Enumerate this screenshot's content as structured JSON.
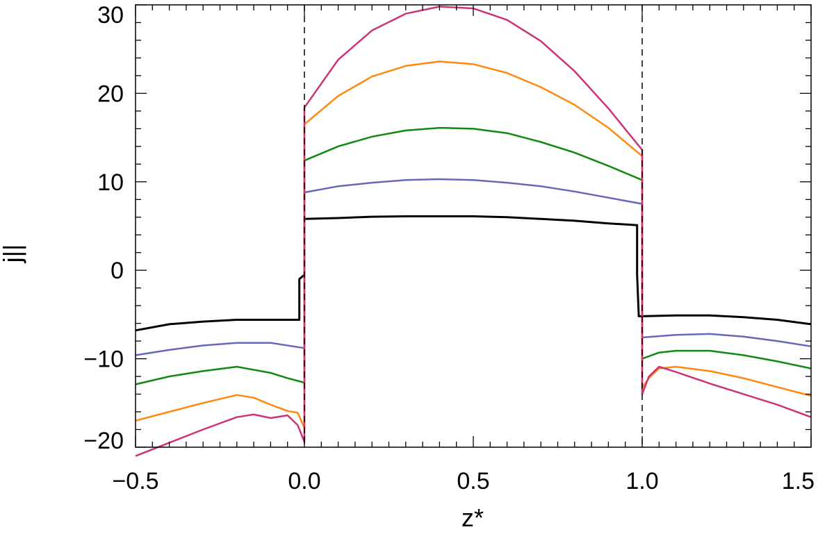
{
  "chart_data": {
    "type": "line",
    "title": "",
    "xlabel": "z*",
    "ylabel": "j||",
    "xlim": [
      -0.5,
      1.5
    ],
    "ylim": [
      -20,
      30
    ],
    "xticks": [
      {
        "value": -0.5,
        "label": "−0.5"
      },
      {
        "value": 0.0,
        "label": "0.0"
      },
      {
        "value": 0.5,
        "label": "0.5"
      },
      {
        "value": 1.0,
        "label": "1.0"
      },
      {
        "value": 1.5,
        "label": "1.5"
      }
    ],
    "yticks": [
      {
        "value": -20,
        "label": "−20"
      },
      {
        "value": -10,
        "label": "−10"
      },
      {
        "value": 0,
        "label": "0"
      },
      {
        "value": 10,
        "label": "10"
      },
      {
        "value": 20,
        "label": "20"
      },
      {
        "value": 30,
        "label": "30"
      }
    ],
    "x_minor_step": 0.05,
    "y_minor_step": 2,
    "grid": false,
    "legend": "none",
    "vlines": [
      0.0,
      1.0
    ],
    "series": [
      {
        "color": "#000000",
        "points": [
          [
            -0.5,
            -6.8
          ],
          [
            -0.4,
            -6.1
          ],
          [
            -0.3,
            -5.8
          ],
          [
            -0.2,
            -5.6
          ],
          [
            -0.1,
            -5.6
          ],
          [
            -0.015,
            -5.6
          ],
          [
            -0.015,
            -1.0
          ],
          [
            0.0,
            -0.5
          ],
          [
            0.0,
            5.8
          ],
          [
            0.1,
            5.9
          ],
          [
            0.2,
            6.05
          ],
          [
            0.3,
            6.1
          ],
          [
            0.4,
            6.1
          ],
          [
            0.5,
            6.1
          ],
          [
            0.6,
            6.0
          ],
          [
            0.7,
            5.8
          ],
          [
            0.8,
            5.6
          ],
          [
            0.9,
            5.3
          ],
          [
            0.985,
            5.1
          ],
          [
            0.985,
            -0.5
          ],
          [
            0.99,
            -5.2
          ],
          [
            1.0,
            -5.2
          ],
          [
            1.1,
            -5.1
          ],
          [
            1.2,
            -5.1
          ],
          [
            1.3,
            -5.3
          ],
          [
            1.4,
            -5.6
          ],
          [
            1.5,
            -6.1
          ]
        ]
      },
      {
        "color": "#6666bb",
        "points": [
          [
            -0.5,
            -9.6
          ],
          [
            -0.4,
            -9.0
          ],
          [
            -0.3,
            -8.5
          ],
          [
            -0.2,
            -8.2
          ],
          [
            -0.1,
            -8.2
          ],
          [
            0.0,
            -8.8
          ],
          [
            0.0,
            8.8
          ],
          [
            0.1,
            9.5
          ],
          [
            0.2,
            9.9
          ],
          [
            0.3,
            10.2
          ],
          [
            0.4,
            10.3
          ],
          [
            0.5,
            10.2
          ],
          [
            0.6,
            9.9
          ],
          [
            0.7,
            9.5
          ],
          [
            0.8,
            8.9
          ],
          [
            0.9,
            8.2
          ],
          [
            1.0,
            7.5
          ],
          [
            1.0,
            -7.6
          ],
          [
            1.1,
            -7.3
          ],
          [
            1.2,
            -7.2
          ],
          [
            1.3,
            -7.5
          ],
          [
            1.4,
            -8.0
          ],
          [
            1.5,
            -8.6
          ]
        ]
      },
      {
        "color": "#118811",
        "points": [
          [
            -0.5,
            -12.9
          ],
          [
            -0.4,
            -12.0
          ],
          [
            -0.3,
            -11.4
          ],
          [
            -0.2,
            -10.9
          ],
          [
            -0.1,
            -11.6
          ],
          [
            -0.05,
            -12.2
          ],
          [
            0.0,
            -12.7
          ],
          [
            0.0,
            12.4
          ],
          [
            0.1,
            14.0
          ],
          [
            0.2,
            15.1
          ],
          [
            0.3,
            15.8
          ],
          [
            0.4,
            16.1
          ],
          [
            0.5,
            16.0
          ],
          [
            0.6,
            15.5
          ],
          [
            0.7,
            14.5
          ],
          [
            0.8,
            13.3
          ],
          [
            0.9,
            11.8
          ],
          [
            1.0,
            10.2
          ],
          [
            1.0,
            -10.0
          ],
          [
            1.05,
            -9.3
          ],
          [
            1.1,
            -9.1
          ],
          [
            1.2,
            -9.1
          ],
          [
            1.3,
            -9.6
          ],
          [
            1.4,
            -10.3
          ],
          [
            1.5,
            -11.1
          ]
        ]
      },
      {
        "color": "#ff8811",
        "points": [
          [
            -0.5,
            -17.0
          ],
          [
            -0.4,
            -16.0
          ],
          [
            -0.3,
            -15.0
          ],
          [
            -0.2,
            -14.1
          ],
          [
            -0.15,
            -14.4
          ],
          [
            -0.1,
            -15.2
          ],
          [
            -0.05,
            -15.9
          ],
          [
            -0.02,
            -16.1
          ],
          [
            0.0,
            -17.8
          ],
          [
            0.0,
            16.5
          ],
          [
            0.1,
            19.7
          ],
          [
            0.2,
            21.9
          ],
          [
            0.3,
            23.1
          ],
          [
            0.4,
            23.6
          ],
          [
            0.5,
            23.3
          ],
          [
            0.6,
            22.3
          ],
          [
            0.7,
            20.7
          ],
          [
            0.8,
            18.7
          ],
          [
            0.9,
            16.1
          ],
          [
            1.0,
            12.9
          ],
          [
            1.0,
            -13.3
          ],
          [
            1.02,
            -12.2
          ],
          [
            1.05,
            -11.1
          ],
          [
            1.1,
            -10.9
          ],
          [
            1.2,
            -11.4
          ],
          [
            1.3,
            -12.2
          ],
          [
            1.4,
            -13.2
          ],
          [
            1.5,
            -14.2
          ]
        ]
      },
      {
        "color": "#cc3377",
        "points": [
          [
            -0.5,
            -21.0
          ],
          [
            -0.4,
            -19.5
          ],
          [
            -0.3,
            -18.0
          ],
          [
            -0.2,
            -16.6
          ],
          [
            -0.15,
            -16.3
          ],
          [
            -0.1,
            -16.7
          ],
          [
            -0.05,
            -16.4
          ],
          [
            -0.02,
            -17.5
          ],
          [
            0.0,
            -19.4
          ],
          [
            0.0,
            18.4
          ],
          [
            0.1,
            23.8
          ],
          [
            0.2,
            27.1
          ],
          [
            0.3,
            29.0
          ],
          [
            0.4,
            29.8
          ],
          [
            0.5,
            29.6
          ],
          [
            0.6,
            28.3
          ],
          [
            0.7,
            25.9
          ],
          [
            0.8,
            22.5
          ],
          [
            0.9,
            18.3
          ],
          [
            1.0,
            13.6
          ],
          [
            1.0,
            -14.0
          ],
          [
            1.02,
            -12.0
          ],
          [
            1.05,
            -10.9
          ],
          [
            1.1,
            -11.5
          ],
          [
            1.2,
            -12.8
          ],
          [
            1.3,
            -14.0
          ],
          [
            1.4,
            -15.2
          ],
          [
            1.5,
            -16.6
          ]
        ]
      }
    ]
  }
}
